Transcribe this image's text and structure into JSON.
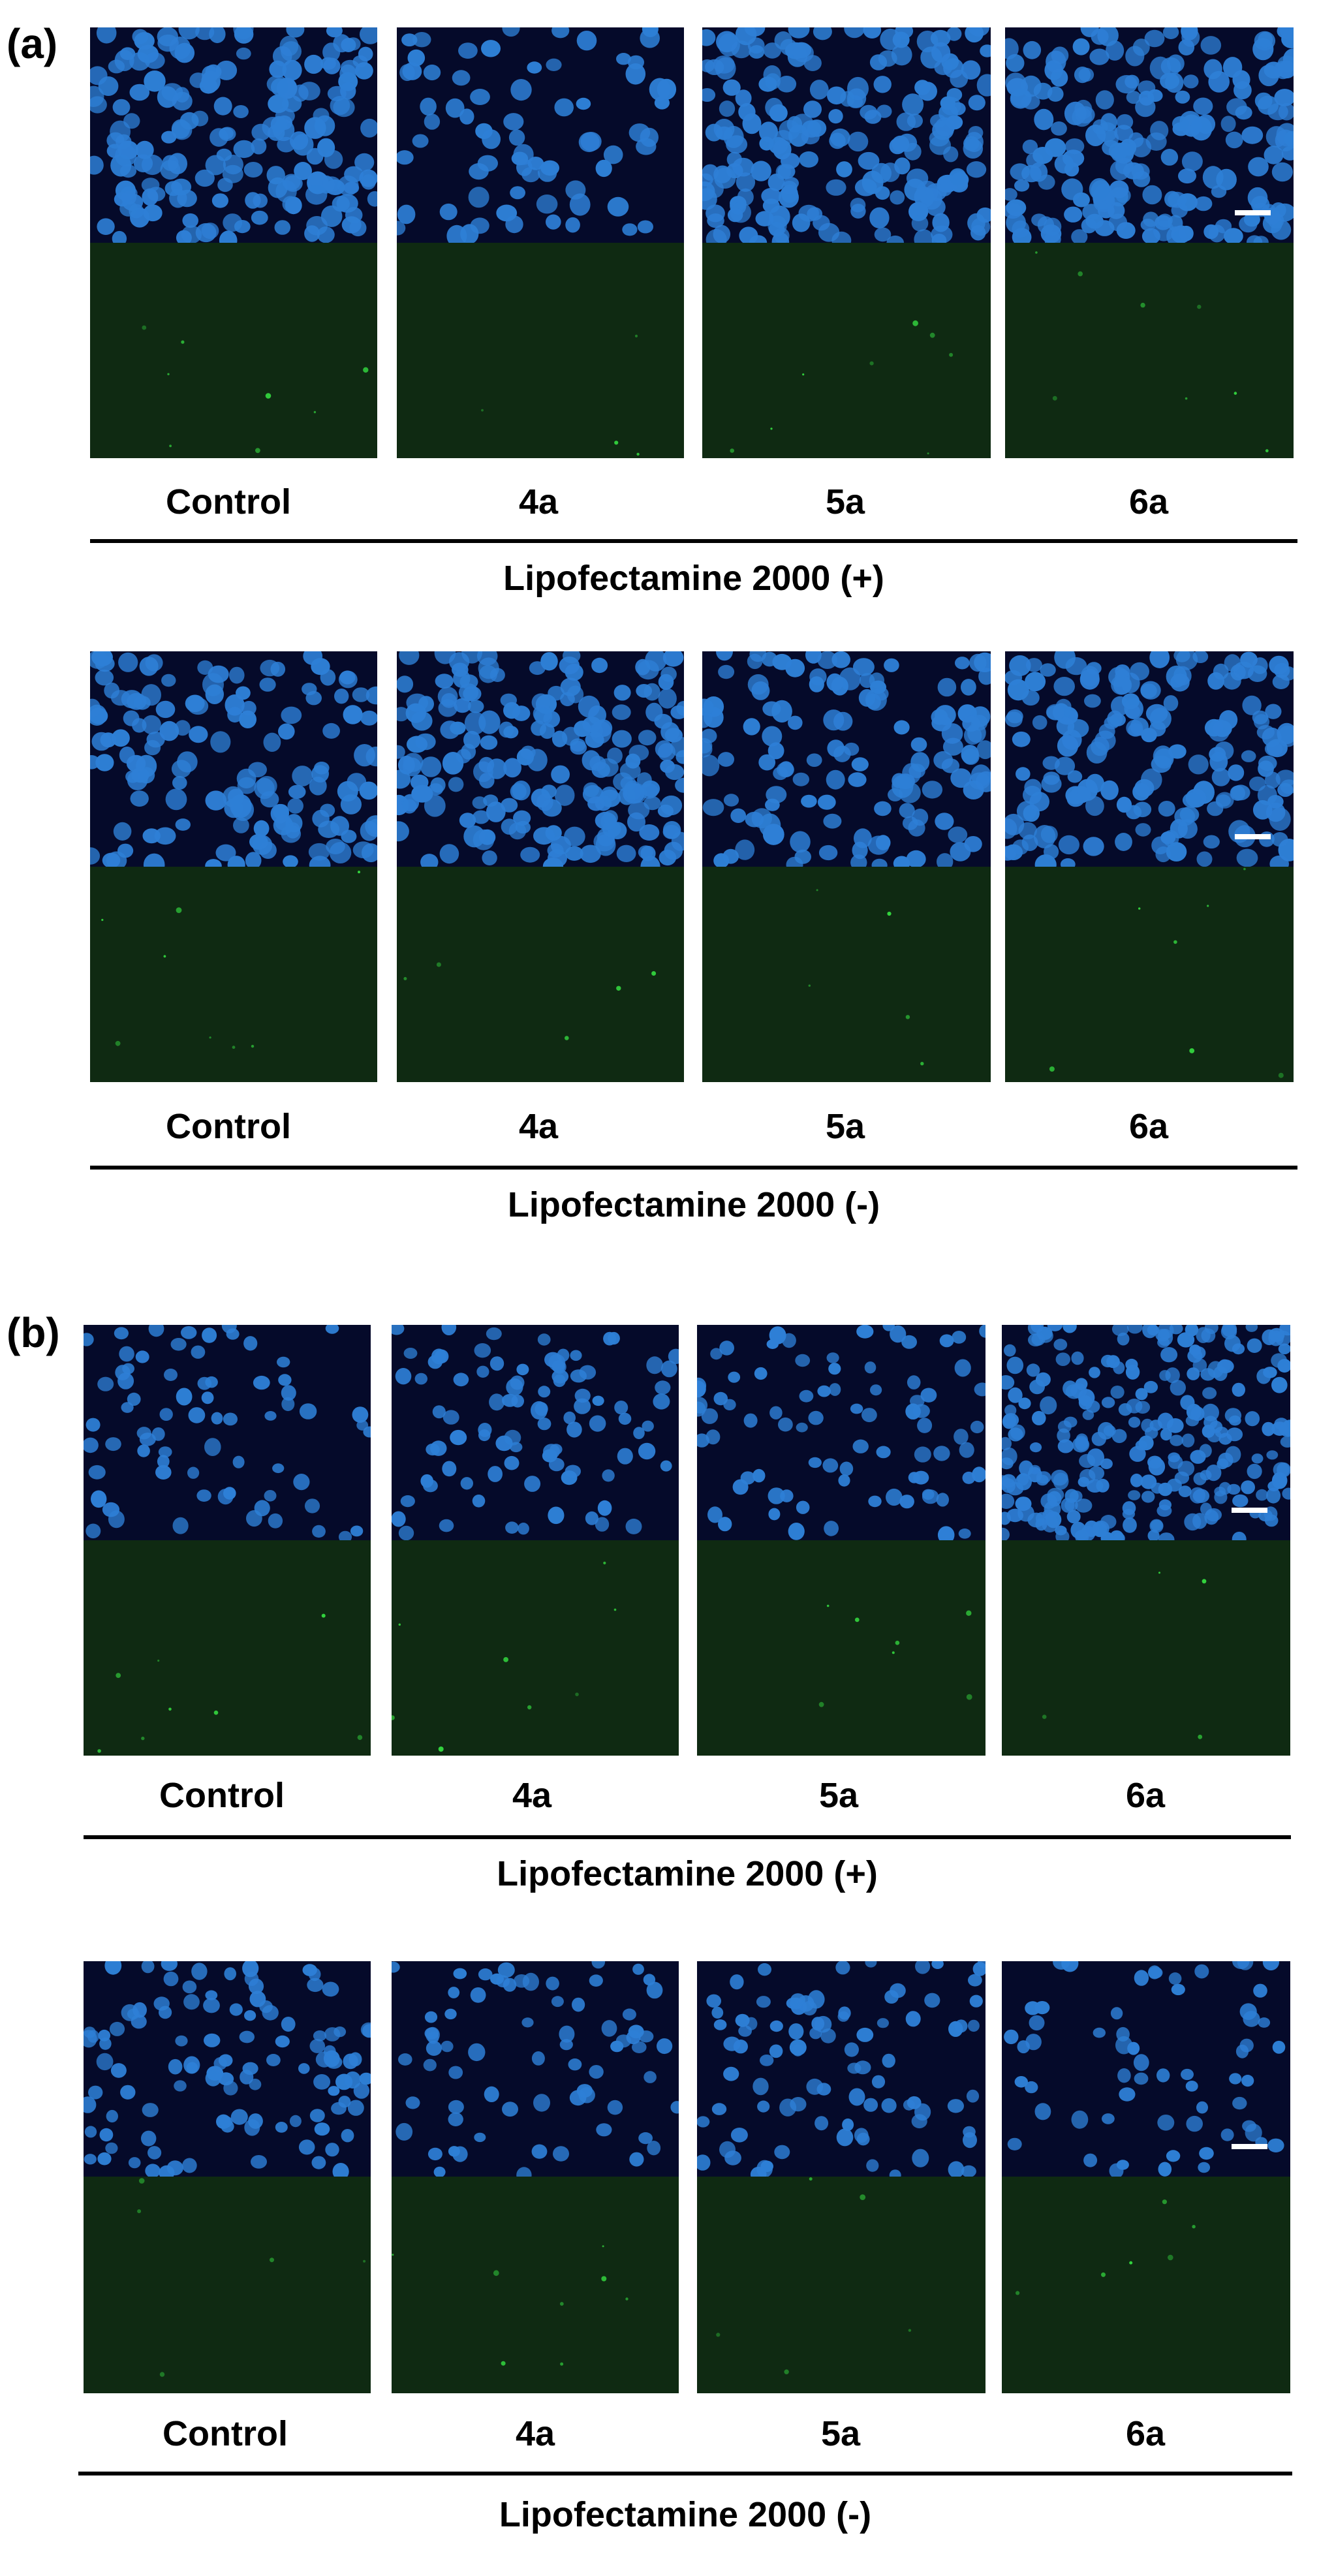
{
  "panels": [
    {
      "letter": "(a)",
      "groups": [
        {
          "labels": [
            "Control",
            "4a",
            "5a",
            "6a"
          ],
          "caption": "Lipofectamine 2000 (+)"
        },
        {
          "labels": [
            "Control",
            "4a",
            "5a",
            "6a"
          ],
          "caption": "Lipofectamine 2000 (-)"
        }
      ]
    },
    {
      "letter": "(b)",
      "groups": [
        {
          "labels": [
            "Control",
            "4a",
            "5a",
            "6a"
          ],
          "caption": "Lipofectamine 2000 (+)"
        },
        {
          "labels": [
            "Control",
            "4a",
            "5a",
            "6a"
          ],
          "caption": "Lipofectamine 2000 (-)"
        }
      ]
    }
  ],
  "colors": {
    "nuclei": "#2e7fd6",
    "nuclei_background": "#050a2a",
    "green_channel": "#0f2a12",
    "green_bright": "#3cff4a"
  }
}
